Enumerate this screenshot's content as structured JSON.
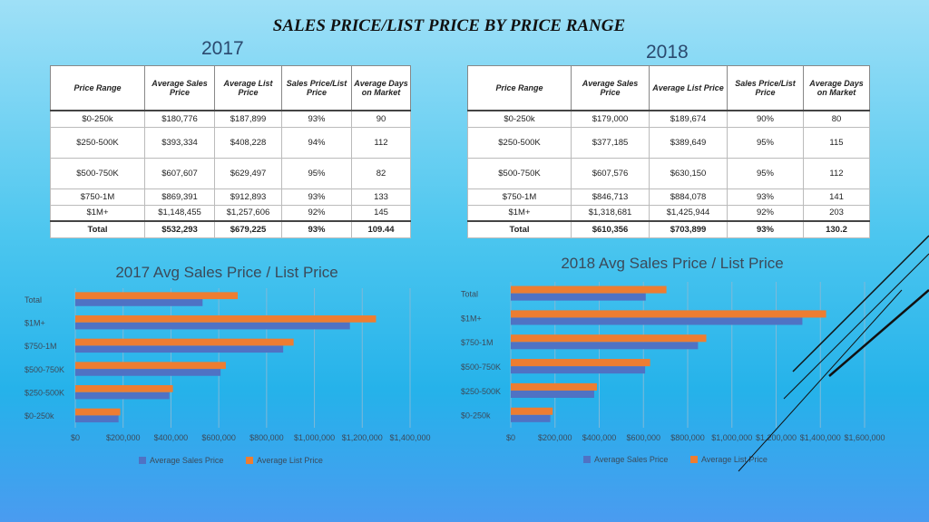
{
  "title": "SALES PRICE/LIST PRICE BY PRICE RANGE",
  "year_2017": "2017",
  "year_2018": "2018",
  "table_headers": [
    "Price Range",
    "Average Sales Price",
    "Average List Price",
    "Sales Price/List Price",
    "Average Days on Market"
  ],
  "table_2017": [
    [
      "$0-250k",
      "$180,776",
      "$187,899",
      "93%",
      "90"
    ],
    [
      "$250-500K",
      "$393,334",
      "$408,228",
      "94%",
      "112"
    ],
    [
      "$500-750K",
      "$607,607",
      "$629,497",
      "95%",
      "82"
    ],
    [
      "$750-1M",
      "$869,391",
      "$912,893",
      "93%",
      "133"
    ],
    [
      "$1M+",
      "$1,148,455",
      "$1,257,606",
      "92%",
      "145"
    ],
    [
      "Total",
      "$532,293",
      "$679,225",
      "93%",
      "109.44"
    ]
  ],
  "table_2018": [
    [
      "$0-250k",
      "$179,000",
      "$189,674",
      "90%",
      "80"
    ],
    [
      "$250-500K",
      "$377,185",
      "$389,649",
      "95%",
      "115"
    ],
    [
      "$500-750K",
      "$607,576",
      "$630,150",
      "95%",
      "112"
    ],
    [
      "$750-1M",
      "$846,713",
      "$884,078",
      "93%",
      "141"
    ],
    [
      "$1M+",
      "$1,318,681",
      "$1,425,944",
      "92%",
      "203"
    ],
    [
      "Total",
      "$610,356",
      "$703,899",
      "93%",
      "130.2"
    ]
  ],
  "chart_data": [
    {
      "type": "bar",
      "orientation": "horizontal",
      "title": "2017 Avg Sales Price / List Price",
      "categories": [
        "$0-250k",
        "$250-500K",
        "$500-750K",
        "$750-1M",
        "$1M+",
        "Total"
      ],
      "series": [
        {
          "name": "Average Sales Price",
          "color": "#4f72c4",
          "values": [
            180776,
            393334,
            607607,
            869391,
            1148455,
            532293
          ]
        },
        {
          "name": "Average List Price",
          "color": "#ed7d31",
          "values": [
            187899,
            408228,
            629497,
            912893,
            1257606,
            679225
          ]
        }
      ],
      "xlim": [
        0,
        1400000
      ],
      "ticks": [
        "$0",
        "$200,000",
        "$400,000",
        "$600,000",
        "$800,000",
        "$1,000,000",
        "$1,200,000",
        "$1,400,000"
      ],
      "grid": true,
      "legend": "bottom"
    },
    {
      "type": "bar",
      "orientation": "horizontal",
      "title": "2018 Avg Sales Price / List Price",
      "categories": [
        "$0-250k",
        "$250-500K",
        "$500-750K",
        "$750-1M",
        "$1M+",
        "Total"
      ],
      "series": [
        {
          "name": "Average Sales Price",
          "color": "#4f72c4",
          "values": [
            179000,
            377185,
            607576,
            846713,
            1318681,
            610356
          ]
        },
        {
          "name": "Average List Price",
          "color": "#ed7d31",
          "values": [
            189674,
            389649,
            630150,
            884078,
            1425944,
            703899
          ]
        }
      ],
      "xlim": [
        0,
        1600000
      ],
      "ticks": [
        "$0",
        "$200,000",
        "$400,000",
        "$600,000",
        "$800,000",
        "$1,000,000",
        "$1,200,000",
        "$1,400,000",
        "$1,600,000"
      ],
      "grid": true,
      "legend": "bottom"
    }
  ]
}
